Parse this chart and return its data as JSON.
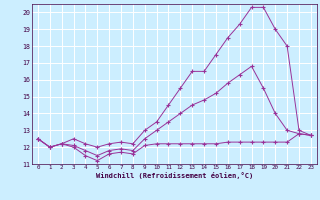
{
  "xlabel": "Windchill (Refroidissement éolien,°C)",
  "background_color": "#cceeff",
  "grid_color": "#aaddcc",
  "line_color": "#993399",
  "xlim": [
    -0.5,
    23.5
  ],
  "ylim": [
    11.0,
    20.5
  ],
  "yticks": [
    11,
    12,
    13,
    14,
    15,
    16,
    17,
    18,
    19,
    20
  ],
  "xticks": [
    0,
    1,
    2,
    3,
    4,
    5,
    6,
    7,
    8,
    9,
    10,
    11,
    12,
    13,
    14,
    15,
    16,
    17,
    18,
    19,
    20,
    21,
    22,
    23
  ],
  "series1_x": [
    0,
    1,
    2,
    3,
    4,
    5,
    6,
    7,
    8,
    9,
    10,
    11,
    12,
    13,
    14,
    15,
    16,
    17,
    18,
    19,
    20,
    21,
    22,
    23
  ],
  "series1_y": [
    12.5,
    12.0,
    12.2,
    12.0,
    11.5,
    11.2,
    11.6,
    11.7,
    11.6,
    12.1,
    12.2,
    12.2,
    12.2,
    12.2,
    12.2,
    12.2,
    12.3,
    12.3,
    12.3,
    12.3,
    12.3,
    12.3,
    12.8,
    12.7
  ],
  "series2_x": [
    0,
    1,
    2,
    3,
    4,
    5,
    6,
    7,
    8,
    9,
    10,
    11,
    12,
    13,
    14,
    15,
    16,
    17,
    18,
    19,
    20,
    21,
    22,
    23
  ],
  "series2_y": [
    12.5,
    12.0,
    12.2,
    12.1,
    11.8,
    11.5,
    11.8,
    11.9,
    11.8,
    12.5,
    13.0,
    13.5,
    14.0,
    14.5,
    14.8,
    15.2,
    15.8,
    16.3,
    16.8,
    15.5,
    14.0,
    13.0,
    12.8,
    12.7
  ],
  "series3_x": [
    0,
    1,
    2,
    3,
    4,
    5,
    6,
    7,
    8,
    9,
    10,
    11,
    12,
    13,
    14,
    15,
    16,
    17,
    18,
    19,
    20,
    21,
    22,
    23
  ],
  "series3_y": [
    12.5,
    12.0,
    12.2,
    12.5,
    12.2,
    12.0,
    12.2,
    12.3,
    12.2,
    13.0,
    13.5,
    14.5,
    15.5,
    16.5,
    16.5,
    17.5,
    18.5,
    19.3,
    20.3,
    20.3,
    19.0,
    18.0,
    13.0,
    12.7
  ]
}
